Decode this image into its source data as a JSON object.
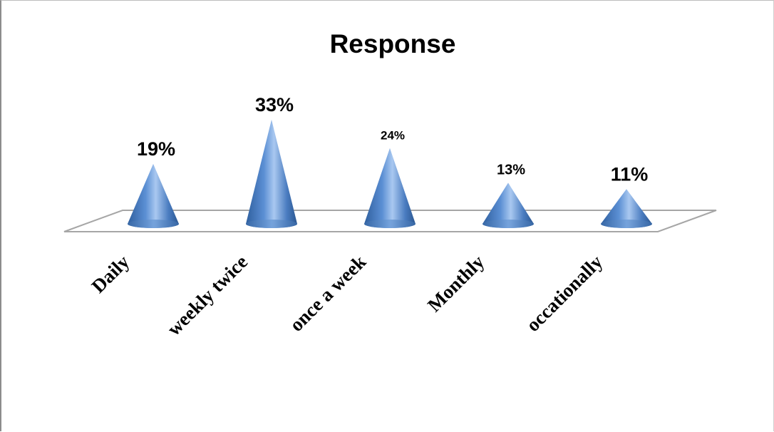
{
  "chart_data": {
    "type": "bar",
    "bar_shape": "cone",
    "title": "Response",
    "categories": [
      "Daily",
      "weekly twice",
      "once a week",
      "Monthly",
      "occationally"
    ],
    "values": [
      19,
      33,
      24,
      13,
      11
    ],
    "data_labels": [
      "19%",
      "33%",
      "24%",
      "13%",
      "11%"
    ],
    "ylim": [
      0,
      35
    ],
    "grid": false,
    "legend": "none",
    "colors": {
      "cone_dark": "#2f5f9e",
      "cone_mid": "#5b8fd4",
      "cone_light": "#a9c8f0"
    }
  }
}
